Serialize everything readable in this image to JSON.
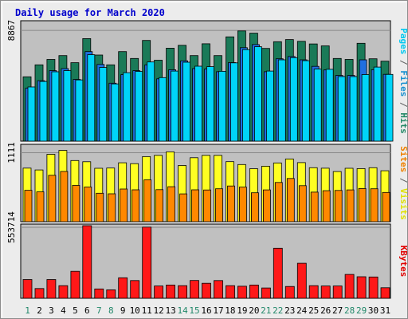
{
  "chart_data": {
    "type": "bar",
    "title": "Daily usage for March 2020",
    "days": [
      "1",
      "2",
      "3",
      "4",
      "5",
      "6",
      "7",
      "8",
      "9",
      "10",
      "11",
      "12",
      "13",
      "14",
      "15",
      "16",
      "17",
      "18",
      "19",
      "20",
      "21",
      "22",
      "23",
      "24",
      "25",
      "26",
      "27",
      "28",
      "29",
      "30",
      "31"
    ],
    "weekend_days": [
      "1",
      "7",
      "8",
      "14",
      "15",
      "21",
      "22",
      "28",
      "29"
    ],
    "panels": [
      {
        "key": "hits_files_pages",
        "max_label": "8867",
        "ymax": 9510,
        "legend": [
          {
            "text": "Pages",
            "color": "#00c8f0"
          },
          {
            "text": " / ",
            "color": "#606060"
          },
          {
            "text": "Files",
            "color": "#1890d0"
          },
          {
            "text": " / ",
            "color": "#606060"
          },
          {
            "text": "Hits",
            "color": "#228866"
          }
        ],
        "series": [
          {
            "name": "Hits",
            "color": "#1a7a58",
            "values": [
              5150,
              6110,
              6540,
              6850,
              6280,
              8210,
              6890,
              6110,
              7170,
              6620,
              8060,
              6480,
              7440,
              7670,
              6850,
              7790,
              6850,
              8350,
              8820,
              8640,
              7420,
              7960,
              8130,
              7990,
              7780,
              7630,
              6620,
              6540,
              7830,
              6590,
              6400
            ]
          },
          {
            "name": "Files",
            "color": "#1f6fe0",
            "values": [
              4240,
              4840,
              5640,
              5810,
              4940,
              7170,
              6140,
              4640,
              5320,
              5640,
              6110,
              4990,
              5710,
              6430,
              5810,
              5770,
              5560,
              6290,
              7480,
              7730,
              5560,
              6590,
              6770,
              6510,
              5990,
              5700,
              5260,
              5260,
              6510,
              5720,
              5350
            ]
          },
          {
            "name": "Pages",
            "color": "#00d4f8",
            "values": [
              4340,
              4780,
              5550,
              5640,
              4900,
              6920,
              5900,
              4580,
              5480,
              5580,
              6340,
              5090,
              5610,
              6320,
              6000,
              5960,
              5590,
              6270,
              7330,
              7560,
              5610,
              6510,
              6680,
              6440,
              5770,
              5750,
              5170,
              5170,
              5330,
              5930,
              5340
            ]
          }
        ]
      },
      {
        "key": "visits_sites",
        "max_label": "1111",
        "ymax": 1220,
        "legend": [
          {
            "text": "Sites",
            "color": "#f08000"
          },
          {
            "text": " / ",
            "color": "#606060"
          },
          {
            "text": "Visits",
            "color": "#e0e000"
          }
        ],
        "series": [
          {
            "name": "Visits",
            "color": "#ffff22",
            "values": [
              863,
              833,
              1085,
              1148,
              985,
              966,
              860,
              864,
              949,
              935,
              1048,
              1069,
              1125,
              906,
              1030,
              1068,
              1068,
              967,
              921,
              854,
              894,
              946,
              1011,
              951,
              869,
              862,
              808,
              860,
              855,
              870,
              821
            ]
          },
          {
            "name": "Sites",
            "color": "#ff8800",
            "values": [
              506,
              480,
              748,
              809,
              584,
              558,
              459,
              450,
              526,
              514,
              674,
              516,
              564,
              448,
              514,
              511,
              531,
              575,
              557,
              466,
              513,
              632,
              696,
              580,
              476,
              499,
              504,
              512,
              534,
              530,
              471
            ]
          }
        ]
      },
      {
        "key": "kbytes",
        "max_label": "553714",
        "ymax": 566000,
        "legend": [
          {
            "text": "KBytes",
            "color": "#e00000"
          }
        ],
        "series": [
          {
            "name": "KBytes",
            "color": "#ff1818",
            "values": [
              146000,
              76000,
              146000,
              98000,
              210000,
              566000,
              73000,
              66000,
              160000,
              138000,
              555000,
              96000,
              103000,
              98000,
              139000,
              117000,
              138000,
              98000,
              94000,
              103000,
              80000,
              390000,
              92000,
              273000,
              98000,
              96000,
              96000,
              186000,
              168000,
              166000,
              82000
            ]
          }
        ]
      }
    ]
  }
}
